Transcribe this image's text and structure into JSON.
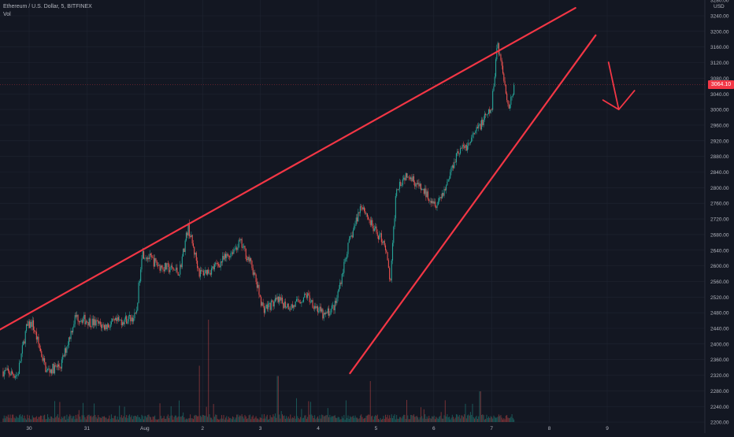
{
  "legend": {
    "symbol_line": "Ethereum / U.S. Dollar, 5, BITFINEX",
    "indicator": "Vol"
  },
  "price_axis": {
    "currency": "USD",
    "labels": [
      "3280.00",
      "3240.00",
      "3200.00",
      "3160.00",
      "3120.00",
      "3080.00",
      "3040.00",
      "3000.00",
      "2960.00",
      "2920.00",
      "2880.00",
      "2840.00",
      "2800.00",
      "2760.00",
      "2720.00",
      "2680.00",
      "2640.00",
      "2600.00",
      "2560.00",
      "2520.00",
      "2480.00",
      "2440.00",
      "2400.00",
      "2360.00",
      "2320.00",
      "2280.00",
      "2240.00",
      "2200.00"
    ],
    "current_price": "3064.10"
  },
  "time_axis": {
    "labels": [
      "30",
      "31",
      "Aug",
      "2",
      "3",
      "4",
      "5",
      "6",
      "7",
      "8",
      "9"
    ]
  },
  "colors": {
    "background": "#131722",
    "grid": "#1f2431",
    "text": "#b2b5be",
    "up": "#26a69a",
    "down": "#ef5350",
    "drawing": "#f23645"
  },
  "chart_data": {
    "type": "candlestick",
    "title": "Ethereum / U.S. Dollar, 5, BITFINEX",
    "indicator": "Vol",
    "ylabel": "USD",
    "ylim": [
      2200,
      3280
    ],
    "x_ticks": [
      "30",
      "31",
      "Aug",
      "2",
      "3",
      "4",
      "5",
      "6",
      "7",
      "8",
      "9"
    ],
    "x_days": [
      30,
      31,
      32,
      33,
      34,
      35,
      36,
      37,
      38,
      39,
      40
    ],
    "last_price": 3064.1,
    "price_path": [
      [
        29.55,
        2330
      ],
      [
        29.8,
        2320
      ],
      [
        29.95,
        2440
      ],
      [
        30.05,
        2455
      ],
      [
        30.3,
        2330
      ],
      [
        30.55,
        2345
      ],
      [
        30.8,
        2470
      ],
      [
        31.0,
        2460
      ],
      [
        31.3,
        2445
      ],
      [
        31.6,
        2460
      ],
      [
        31.85,
        2470
      ],
      [
        31.95,
        2635
      ],
      [
        32.25,
        2600
      ],
      [
        32.6,
        2585
      ],
      [
        32.75,
        2700
      ],
      [
        32.95,
        2580
      ],
      [
        33.15,
        2590
      ],
      [
        33.4,
        2620
      ],
      [
        33.65,
        2660
      ],
      [
        33.85,
        2600
      ],
      [
        34.05,
        2490
      ],
      [
        34.3,
        2510
      ],
      [
        34.55,
        2495
      ],
      [
        34.8,
        2525
      ],
      [
        35.1,
        2470
      ],
      [
        35.3,
        2500
      ],
      [
        35.5,
        2640
      ],
      [
        35.75,
        2760
      ],
      [
        35.95,
        2695
      ],
      [
        36.15,
        2660
      ],
      [
        36.25,
        2555
      ],
      [
        36.35,
        2800
      ],
      [
        36.55,
        2840
      ],
      [
        36.75,
        2800
      ],
      [
        37.05,
        2760
      ],
      [
        37.2,
        2800
      ],
      [
        37.4,
        2890
      ],
      [
        37.6,
        2910
      ],
      [
        37.8,
        2960
      ],
      [
        38.0,
        3000
      ],
      [
        38.1,
        3175
      ],
      [
        38.2,
        3090
      ],
      [
        38.3,
        3005
      ],
      [
        38.4,
        3064.1
      ]
    ],
    "trendlines": [
      {
        "name": "upper",
        "from": [
          29.35,
          2425
        ],
        "to": [
          39.45,
          3260
        ]
      },
      {
        "name": "lower",
        "from": [
          35.55,
          2325
        ],
        "to": [
          39.8,
          3190
        ]
      }
    ],
    "arrow": {
      "direction": "down",
      "tip": [
        40.2,
        3000
      ]
    },
    "volume_spikes": [
      [
        33.1,
        1.0
      ],
      [
        32.95,
        0.55
      ],
      [
        34.3,
        0.45
      ],
      [
        35.9,
        0.4
      ],
      [
        37.8,
        0.3
      ]
    ]
  }
}
